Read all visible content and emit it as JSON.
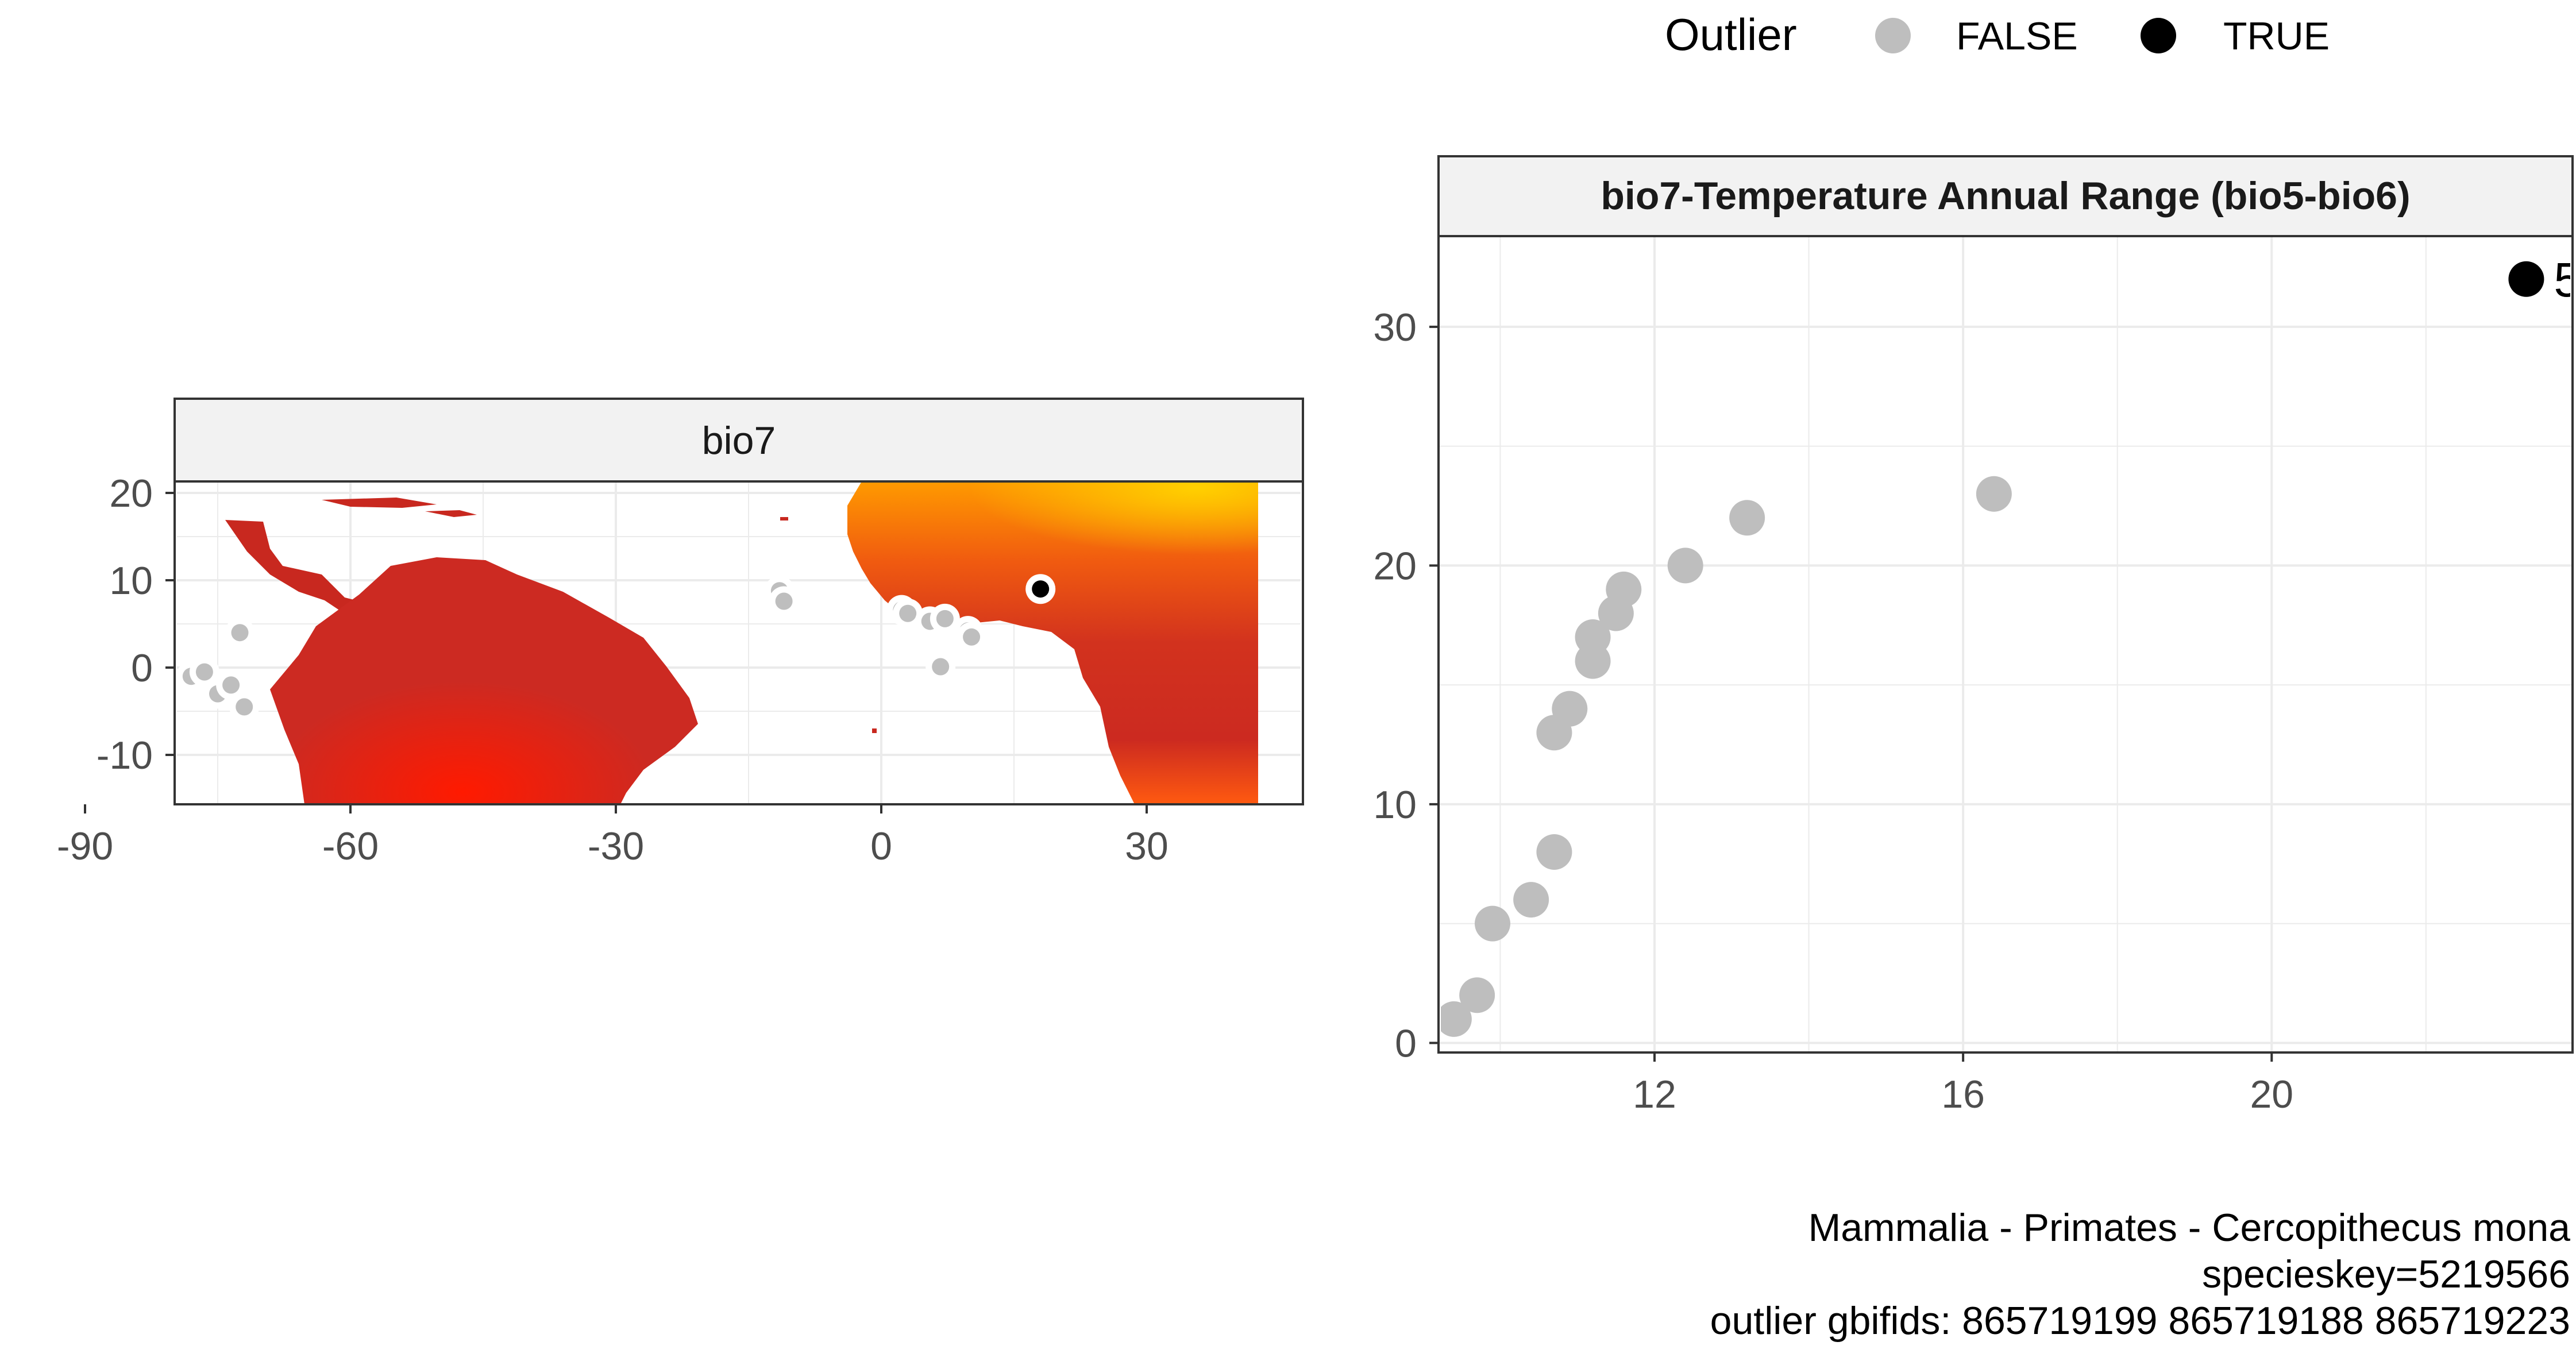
{
  "legend": {
    "title": "Outlier",
    "items": [
      {
        "label": "FALSE",
        "color": "#bebebe"
      },
      {
        "label": "TRUE",
        "color": "#000000"
      }
    ]
  },
  "map_panel": {
    "strip_title": "bio7",
    "x_ticks": [
      "-90",
      "-60",
      "-30",
      "0",
      "30"
    ],
    "y_ticks": [
      "20",
      "10",
      "0",
      "-10"
    ],
    "fill_colors": {
      "low": "#c62a22",
      "mid": "#ff1a00",
      "high": "#ffcc00"
    },
    "points": [
      {
        "lon": -72.5,
        "lat": 4.0,
        "outlier": false
      },
      {
        "lon": -78.0,
        "lat": -1.0,
        "outlier": false
      },
      {
        "lon": -76.5,
        "lat": -0.5,
        "outlier": false
      },
      {
        "lon": -75.0,
        "lat": -3.0,
        "outlier": false
      },
      {
        "lon": -73.5,
        "lat": -2.0,
        "outlier": false
      },
      {
        "lon": -72.0,
        "lat": -4.5,
        "outlier": false
      },
      {
        "lon": -11.5,
        "lat": 8.8,
        "outlier": false
      },
      {
        "lon": -11.0,
        "lat": 7.6,
        "outlier": false
      },
      {
        "lon": 2.3,
        "lat": 6.6,
        "outlier": false
      },
      {
        "lon": 3.0,
        "lat": 6.2,
        "outlier": false
      },
      {
        "lon": 5.5,
        "lat": 5.3,
        "outlier": false
      },
      {
        "lon": 7.2,
        "lat": 5.6,
        "outlier": false
      },
      {
        "lon": 9.8,
        "lat": 4.2,
        "outlier": false
      },
      {
        "lon": 10.2,
        "lat": 3.5,
        "outlier": false
      },
      {
        "lon": 6.7,
        "lat": 0.1,
        "outlier": false
      },
      {
        "lon": 18.0,
        "lat": 9.0,
        "outlier": true
      }
    ]
  },
  "chart_data": {
    "type": "scatter",
    "title": "bio7-Temperature Annual Range (bio5-bio6)",
    "xlabel": "",
    "ylabel": "",
    "xlim": [
      9.2,
      23.9
    ],
    "ylim": [
      -0.4,
      33.8
    ],
    "x_ticks": [
      12,
      16,
      20
    ],
    "y_ticks": [
      0,
      10,
      20,
      30
    ],
    "grid": true,
    "legend_position": "top",
    "points": [
      {
        "x": 9.4,
        "y": 1,
        "outlier": false
      },
      {
        "x": 9.7,
        "y": 2,
        "outlier": false
      },
      {
        "x": 9.9,
        "y": 5,
        "outlier": false
      },
      {
        "x": 10.4,
        "y": 6,
        "outlier": false
      },
      {
        "x": 10.7,
        "y": 8,
        "outlier": false
      },
      {
        "x": 10.7,
        "y": 13,
        "outlier": false
      },
      {
        "x": 10.9,
        "y": 14,
        "outlier": false
      },
      {
        "x": 11.2,
        "y": 16,
        "outlier": false
      },
      {
        "x": 11.2,
        "y": 17,
        "outlier": false
      },
      {
        "x": 11.5,
        "y": 18,
        "outlier": false
      },
      {
        "x": 11.6,
        "y": 19,
        "outlier": false
      },
      {
        "x": 12.4,
        "y": 20,
        "outlier": false
      },
      {
        "x": 13.2,
        "y": 22,
        "outlier": false
      },
      {
        "x": 16.4,
        "y": 23,
        "outlier": false
      },
      {
        "x": 23.3,
        "y": 32,
        "outlier": true
      }
    ],
    "annotations": [
      {
        "x": 23.3,
        "y": 32,
        "text": "5"
      }
    ]
  },
  "caption": {
    "line1": "Mammalia - Primates - Cercopithecus mona",
    "line2": "specieskey=5219566",
    "line3": "outlier gbifids: 865719199 865719188 865719223"
  }
}
